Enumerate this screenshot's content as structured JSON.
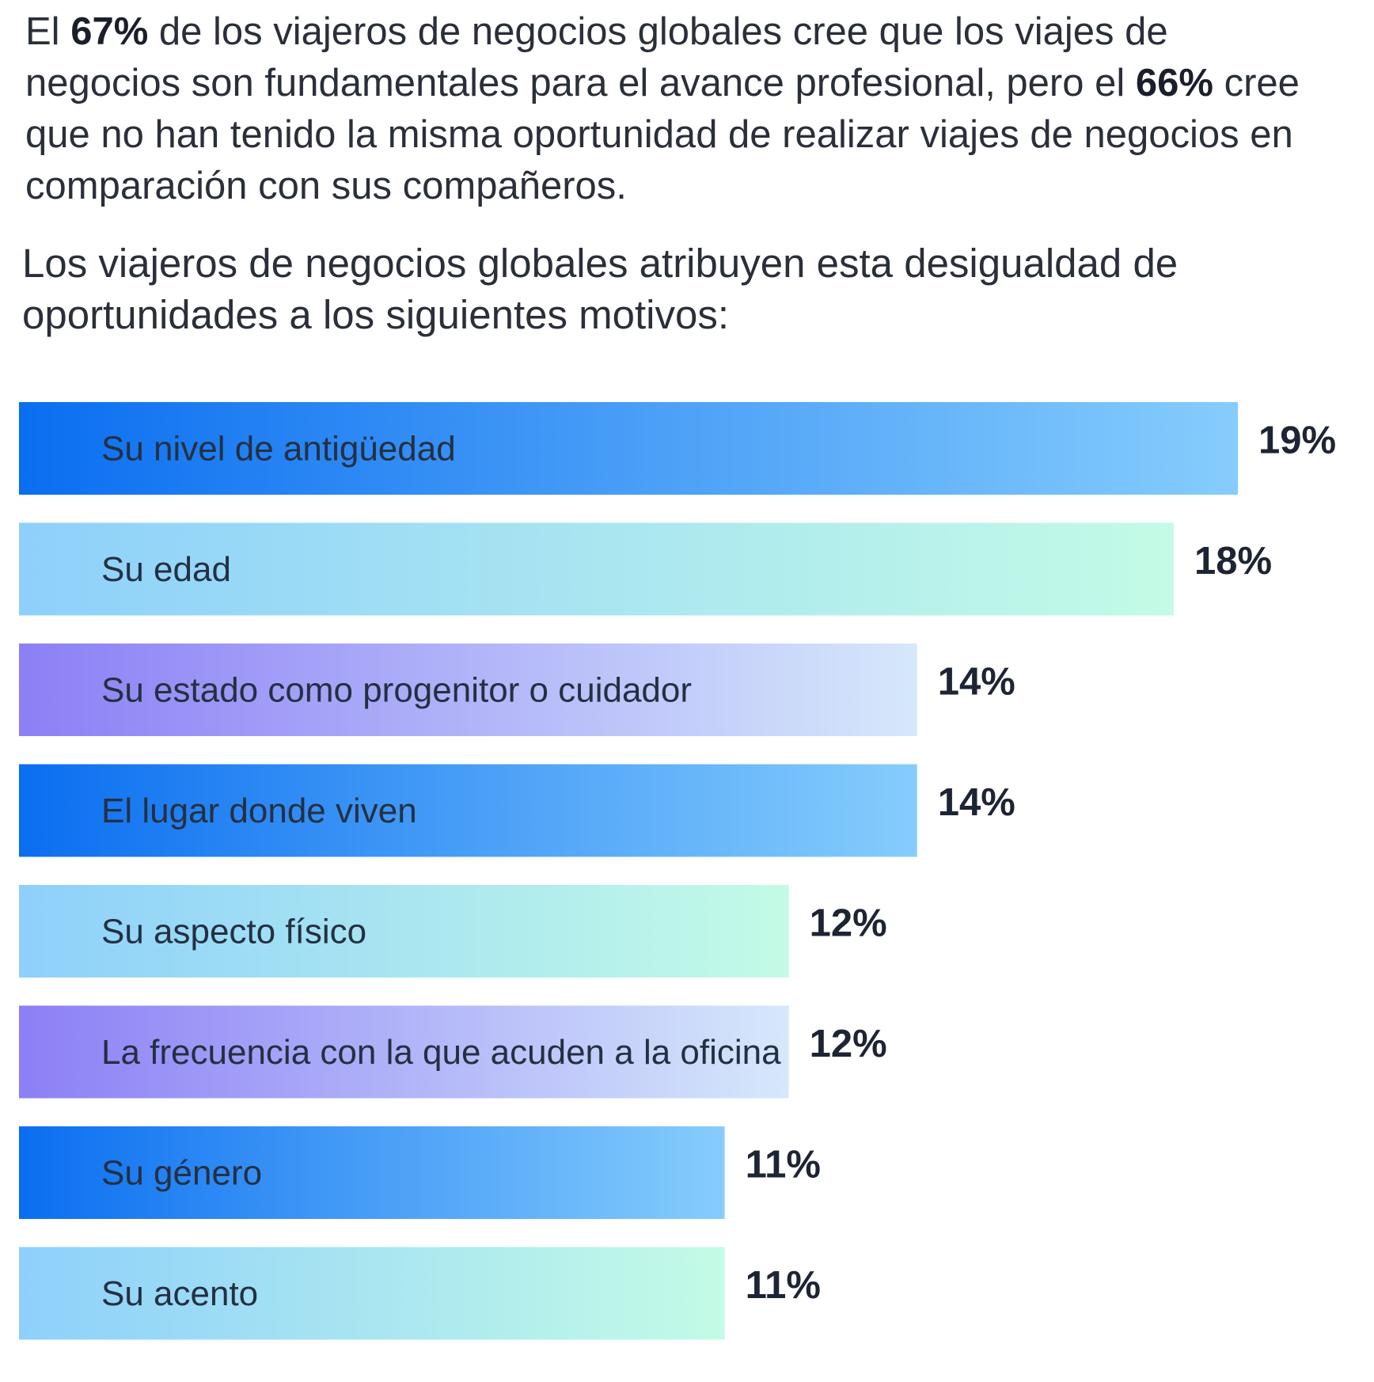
{
  "intro": {
    "p1": "El ",
    "stat1": "67%",
    "p2": " de los viajeros de negocios globales cree que los viajes de negocios son fundamentales para el avance profesional, pero el ",
    "stat2": "66%",
    "p3": " cree que no han tenido la misma oportunidad de realizar viajes de negocios en comparación con sus compañeros."
  },
  "subintro": "Los viajeros de negocios globales atribuyen esta desigualdad de oportunidades a los siguientes motivos:",
  "chart_data": {
    "type": "bar",
    "orientation": "horizontal",
    "categories": [
      "Su nivel de antigüedad",
      "Su edad",
      "Su estado como progenitor o cuidador",
      "El lugar donde viven",
      "Su aspecto físico",
      "La frecuencia con la que acuden a la oficina",
      "Su género",
      "Su acento"
    ],
    "values": [
      19,
      18,
      14,
      14,
      12,
      12,
      11,
      11
    ],
    "value_labels": [
      "19%",
      "18%",
      "14%",
      "14%",
      "12%",
      "12%",
      "11%",
      "11%"
    ],
    "xlim": [
      0,
      19
    ],
    "grid": false,
    "gradients": {
      "blue": [
        "#0a6ef0",
        "#86cdfd"
      ],
      "cyan": [
        "#8ed0fb",
        "#c3fbe6"
      ],
      "purple": [
        "#8c7ff6",
        "#d6e8fb"
      ]
    },
    "bar_gradient": [
      "blue",
      "cyan",
      "purple",
      "blue",
      "cyan",
      "purple",
      "blue",
      "cyan"
    ]
  }
}
